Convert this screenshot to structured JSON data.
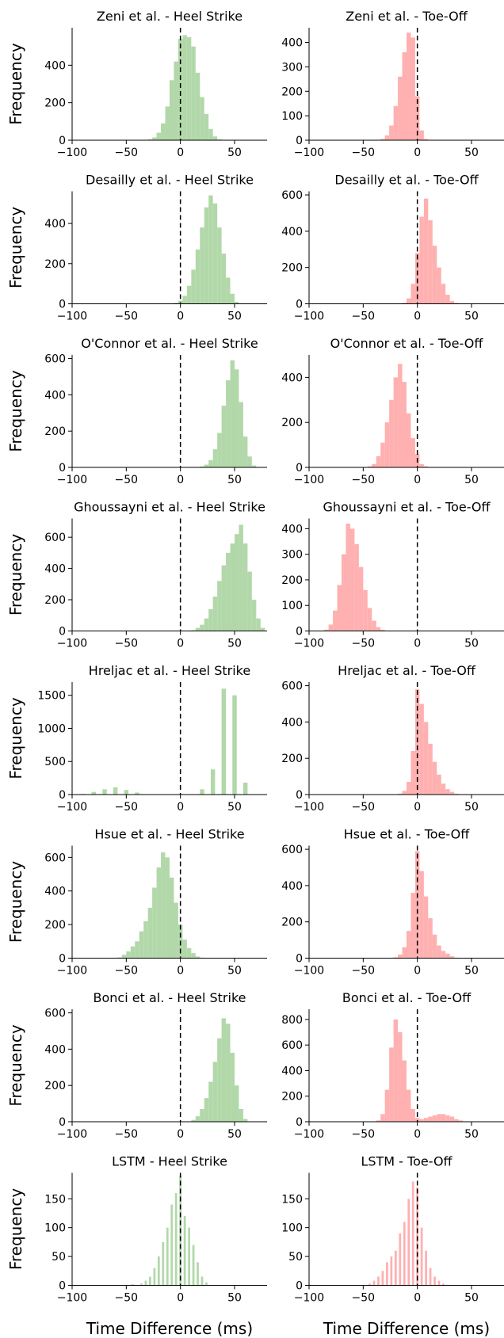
{
  "ylabel": "Frequency",
  "xlabel": "Time Difference (ms)",
  "xlim": [
    -100,
    80
  ],
  "xticks": [
    -100,
    -50,
    0,
    50
  ],
  "colors": {
    "heel": "#b2d8aa",
    "toe": "#ffb0b0"
  },
  "chart_data": [
    {
      "type": "bar",
      "title": "Zeni et al. - Heel Strike",
      "ylim": [
        0,
        600
      ],
      "yticks": [
        0,
        200,
        400
      ],
      "x": [
        -28,
        -24,
        -20,
        -16,
        -12,
        -8,
        -4,
        0,
        4,
        8,
        12,
        16,
        20,
        24,
        28,
        32,
        36
      ],
      "values": [
        5,
        15,
        40,
        90,
        180,
        320,
        420,
        540,
        560,
        550,
        500,
        360,
        230,
        140,
        60,
        20,
        5
      ]
    },
    {
      "type": "bar",
      "title": "Zeni et al. - Toe-Off",
      "ylim": [
        0,
        460
      ],
      "yticks": [
        0,
        100,
        200,
        300,
        400
      ],
      "x": [
        -32,
        -28,
        -24,
        -20,
        -16,
        -12,
        -8,
        -4,
        0,
        4,
        8
      ],
      "values": [
        5,
        20,
        60,
        140,
        260,
        360,
        440,
        420,
        180,
        40,
        5
      ]
    },
    {
      "type": "bar",
      "title": "Desailly et al. - Heel Strike",
      "ylim": [
        0,
        560
      ],
      "yticks": [
        0,
        200,
        400
      ],
      "x": [
        -4,
        0,
        4,
        8,
        12,
        16,
        20,
        24,
        28,
        32,
        36,
        40,
        44,
        48,
        52
      ],
      "values": [
        5,
        15,
        40,
        90,
        170,
        270,
        380,
        480,
        540,
        500,
        380,
        250,
        130,
        50,
        10
      ]
    },
    {
      "type": "bar",
      "title": "Desailly et al. - Toe-Off",
      "ylim": [
        0,
        620
      ],
      "yticks": [
        0,
        200,
        400,
        600
      ],
      "x": [
        -12,
        -8,
        -4,
        0,
        4,
        8,
        12,
        16,
        20,
        24,
        28,
        32,
        36
      ],
      "values": [
        5,
        30,
        110,
        280,
        480,
        580,
        460,
        320,
        200,
        110,
        50,
        15,
        5
      ]
    },
    {
      "type": "bar",
      "title": "O'Connor et al. - Heel Strike",
      "ylim": [
        0,
        620
      ],
      "yticks": [
        0,
        200,
        400,
        600
      ],
      "x": [
        20,
        24,
        28,
        32,
        36,
        40,
        44,
        48,
        52,
        56,
        60,
        64,
        68
      ],
      "values": [
        5,
        15,
        40,
        100,
        190,
        340,
        480,
        590,
        540,
        360,
        170,
        60,
        10
      ]
    },
    {
      "type": "bar",
      "title": "O'Connor et al. - Toe-Off",
      "ylim": [
        0,
        500
      ],
      "yticks": [
        0,
        200,
        400
      ],
      "x": [
        -44,
        -40,
        -36,
        -32,
        -28,
        -24,
        -20,
        -16,
        -12,
        -8,
        -4,
        0,
        4,
        8
      ],
      "values": [
        5,
        15,
        50,
        110,
        200,
        300,
        400,
        460,
        380,
        240,
        130,
        60,
        15,
        5
      ]
    },
    {
      "type": "bar",
      "title": "Ghoussayni et al. - Heel Strike",
      "ylim": [
        0,
        720
      ],
      "yticks": [
        0,
        200,
        400,
        600
      ],
      "x": [
        12,
        16,
        20,
        24,
        28,
        32,
        36,
        40,
        44,
        48,
        52,
        56,
        60,
        64,
        68,
        72,
        76
      ],
      "values": [
        5,
        20,
        40,
        80,
        140,
        220,
        320,
        420,
        500,
        560,
        620,
        680,
        560,
        380,
        200,
        80,
        20
      ]
    },
    {
      "type": "bar",
      "title": "Ghoussayni et al. - Toe-Off",
      "ylim": [
        0,
        440
      ],
      "yticks": [
        0,
        100,
        200,
        300,
        400
      ],
      "x": [
        -84,
        -80,
        -76,
        -72,
        -68,
        -64,
        -60,
        -56,
        -52,
        -48,
        -44,
        -40,
        -36,
        -32
      ],
      "values": [
        5,
        25,
        80,
        180,
        300,
        420,
        400,
        340,
        250,
        160,
        90,
        40,
        15,
        5
      ]
    },
    {
      "type": "bar",
      "title": "Hreljac et al. - Heel Strike",
      "ylim": [
        0,
        1700
      ],
      "yticks": [
        0,
        500,
        1000,
        1500
      ],
      "x": [
        -90,
        -80,
        -70,
        -60,
        -50,
        -40,
        -30,
        20,
        30,
        40,
        50,
        60
      ],
      "values": [
        10,
        40,
        80,
        110,
        70,
        30,
        5,
        80,
        380,
        1600,
        1500,
        180
      ]
    },
    {
      "type": "bar",
      "title": "Hreljac et al. - Toe-Off",
      "ylim": [
        0,
        620
      ],
      "yticks": [
        0,
        200,
        400,
        600
      ],
      "x": [
        -16,
        -12,
        -8,
        -4,
        0,
        4,
        8,
        12,
        16,
        20,
        24,
        28,
        32,
        36,
        40
      ],
      "values": [
        5,
        20,
        70,
        240,
        580,
        500,
        400,
        280,
        180,
        110,
        60,
        30,
        15,
        5,
        2
      ]
    },
    {
      "type": "bar",
      "title": "Hsue et al. - Heel Strike",
      "ylim": [
        0,
        670
      ],
      "yticks": [
        0,
        200,
        400,
        600
      ],
      "x": [
        -56,
        -52,
        -48,
        -44,
        -40,
        -36,
        -32,
        -28,
        -24,
        -20,
        -16,
        -12,
        -8,
        -4,
        0,
        4,
        8,
        12,
        16,
        20
      ],
      "values": [
        5,
        20,
        40,
        70,
        100,
        160,
        220,
        300,
        420,
        540,
        630,
        600,
        480,
        330,
        200,
        110,
        60,
        30,
        10,
        3
      ]
    },
    {
      "type": "bar",
      "title": "Hsue et al. - Toe-Off",
      "ylim": [
        0,
        620
      ],
      "yticks": [
        0,
        200,
        400,
        600
      ],
      "x": [
        -20,
        -16,
        -12,
        -8,
        -4,
        0,
        4,
        8,
        12,
        16,
        20,
        24,
        28,
        32,
        36
      ],
      "values": [
        5,
        20,
        60,
        150,
        360,
        590,
        480,
        340,
        220,
        130,
        70,
        40,
        25,
        10,
        3
      ]
    },
    {
      "type": "bar",
      "title": "Bonci et al. - Heel Strike",
      "ylim": [
        0,
        620
      ],
      "yticks": [
        0,
        200,
        400,
        600
      ],
      "x": [
        12,
        16,
        20,
        24,
        28,
        32,
        36,
        40,
        44,
        48,
        52,
        56,
        60
      ],
      "values": [
        10,
        30,
        70,
        130,
        220,
        330,
        460,
        570,
        540,
        380,
        200,
        70,
        15
      ]
    },
    {
      "type": "bar",
      "title": "Bonci et al. - Toe-Off",
      "ylim": [
        0,
        880
      ],
      "yticks": [
        0,
        200,
        400,
        600,
        800
      ],
      "x": [
        -36,
        -32,
        -28,
        -24,
        -20,
        -16,
        -12,
        -8,
        -4,
        0,
        4,
        8,
        12,
        16,
        20,
        24,
        28,
        32,
        36,
        40
      ],
      "values": [
        10,
        60,
        250,
        580,
        800,
        700,
        480,
        250,
        100,
        30,
        20,
        30,
        40,
        50,
        60,
        60,
        50,
        40,
        20,
        10
      ]
    },
    {
      "type": "bar",
      "title": "LSTM - Heel Strike",
      "ylim": [
        0,
        195
      ],
      "yticks": [
        0,
        50,
        100,
        150
      ],
      "x": [
        -44,
        -36,
        -32,
        -28,
        -24,
        -20,
        -16,
        -12,
        -8,
        -4,
        0,
        4,
        8,
        12,
        16,
        20,
        24
      ],
      "values": [
        2,
        3,
        8,
        15,
        30,
        50,
        75,
        100,
        140,
        160,
        190,
        120,
        100,
        70,
        40,
        15,
        5
      ],
      "bar_width": 2
    },
    {
      "type": "bar",
      "title": "LSTM - Toe-Off",
      "ylim": [
        0,
        195
      ],
      "yticks": [
        0,
        50,
        100,
        150
      ],
      "x": [
        -44,
        -40,
        -36,
        -32,
        -28,
        -24,
        -20,
        -16,
        -12,
        -8,
        -4,
        0,
        4,
        8,
        12,
        16,
        20,
        24,
        28
      ],
      "values": [
        3,
        8,
        15,
        25,
        40,
        50,
        60,
        90,
        110,
        150,
        180,
        170,
        100,
        60,
        30,
        15,
        8,
        3,
        1
      ],
      "bar_width": 2
    }
  ]
}
